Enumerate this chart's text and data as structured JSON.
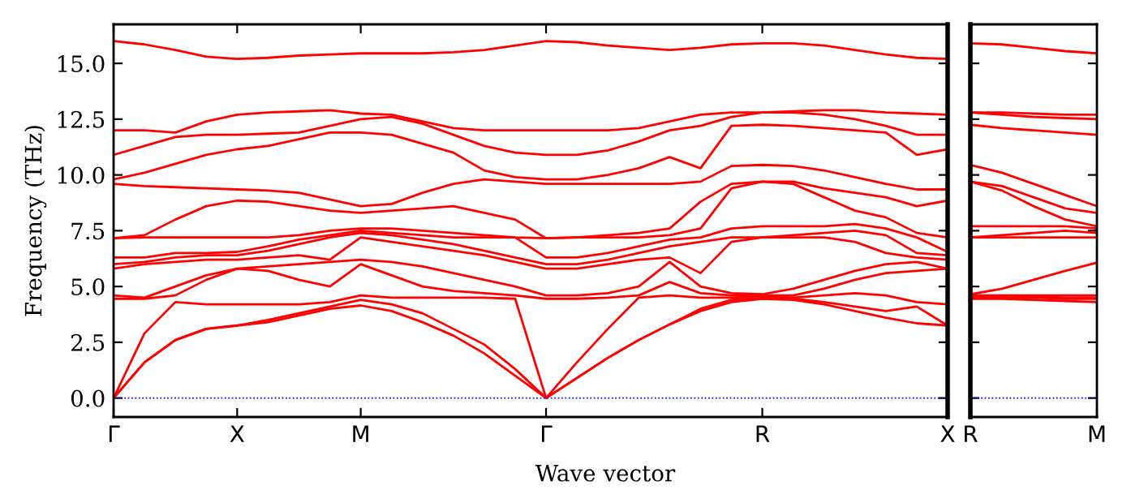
{
  "chart_data": [
    {
      "type": "line",
      "xlabel": "Wave vector",
      "ylabel": "Frequency (THz)",
      "line_style": "solid",
      "categories": [
        "Γ",
        null,
        null,
        null,
        "X",
        null,
        null,
        null,
        "M",
        null,
        null,
        null,
        null,
        null,
        "Γ",
        null,
        null,
        null,
        null,
        null,
        null,
        "R",
        null,
        null,
        null,
        null,
        null,
        "X"
      ],
      "ylim": [
        -0.85,
        16.75
      ],
      "yticks": [
        {
          "value": 0,
          "label": "0.0"
        },
        {
          "value": 2.5,
          "label": "2.5"
        },
        {
          "value": 5,
          "label": "5.0"
        },
        {
          "value": 7.5,
          "label": "7.5"
        },
        {
          "value": 10,
          "label": "10.0"
        },
        {
          "value": 12.5,
          "label": "12.5"
        },
        {
          "value": 15,
          "label": "15.0"
        }
      ],
      "ref_lines": [
        {
          "axis": "y",
          "value": 0,
          "color": "#0000ff",
          "line_style": "dotted"
        }
      ],
      "series": [
        {
          "color": "#ff0000",
          "values": [
            0,
            1.6,
            2.6,
            3.1,
            3.25,
            3.4,
            3.7,
            4.0,
            4.15,
            3.9,
            3.4,
            2.8,
            2.0,
            1.0,
            0,
            0.9,
            1.8,
            2.6,
            3.3,
            3.9,
            4.3,
            4.45,
            4.4,
            4.2,
            3.9,
            3.6,
            3.35,
            3.25
          ]
        },
        {
          "color": "#ff0000",
          "values": [
            0,
            1.6,
            2.6,
            3.1,
            3.25,
            3.5,
            3.8,
            4.1,
            4.4,
            4.2,
            3.8,
            3.1,
            2.4,
            1.3,
            0,
            0.9,
            1.8,
            2.6,
            3.3,
            4.0,
            4.4,
            4.5,
            4.45,
            4.3,
            4.1,
            3.9,
            4.1,
            3.25
          ]
        },
        {
          "color": "#ff0000",
          "values": [
            0,
            2.9,
            4.3,
            4.2,
            4.2,
            4.2,
            4.2,
            4.3,
            4.6,
            4.5,
            4.5,
            4.5,
            4.5,
            4.45,
            0,
            1.6,
            3.1,
            4.5,
            4.6,
            4.5,
            4.5,
            4.55,
            4.5,
            4.6,
            4.7,
            4.6,
            4.3,
            4.2
          ]
        },
        {
          "color": "#ff0000",
          "values": [
            4.45,
            4.45,
            4.6,
            5.3,
            5.8,
            5.7,
            5.3,
            5.0,
            6.0,
            5.5,
            5.0,
            4.8,
            4.7,
            4.6,
            4.45,
            4.45,
            4.5,
            4.6,
            5.2,
            4.7,
            4.6,
            4.6,
            4.6,
            4.9,
            5.3,
            5.6,
            5.7,
            5.8
          ]
        },
        {
          "color": "#ff0000",
          "values": [
            4.6,
            4.5,
            5.0,
            5.5,
            5.8,
            5.9,
            6.0,
            6.1,
            6.2,
            6.1,
            5.9,
            5.6,
            5.3,
            5.0,
            4.6,
            4.6,
            4.7,
            5.0,
            6.1,
            5.0,
            4.7,
            4.65,
            4.9,
            5.3,
            5.7,
            6.0,
            6.1,
            5.8
          ]
        },
        {
          "color": "#ff0000",
          "values": [
            5.8,
            6.0,
            6.1,
            6.2,
            6.2,
            6.3,
            6.4,
            6.2,
            7.2,
            7.0,
            6.8,
            6.6,
            6.4,
            6.1,
            5.8,
            5.8,
            6.0,
            6.2,
            6.3,
            5.6,
            7.0,
            7.2,
            7.2,
            7.2,
            7.0,
            6.5,
            6.3,
            6.2
          ]
        },
        {
          "color": "#ff0000",
          "values": [
            6.0,
            6.1,
            6.3,
            6.4,
            6.4,
            6.6,
            6.9,
            7.2,
            7.4,
            7.3,
            7.1,
            6.9,
            6.6,
            6.3,
            6.0,
            6.0,
            6.2,
            6.5,
            6.8,
            7.0,
            7.2,
            7.2,
            7.3,
            7.4,
            7.5,
            7.3,
            6.5,
            6.4
          ]
        },
        {
          "color": "#ff0000",
          "values": [
            6.3,
            6.3,
            6.5,
            6.5,
            6.55,
            6.8,
            7.1,
            7.3,
            7.5,
            7.4,
            7.3,
            7.2,
            7.2,
            7.2,
            6.3,
            6.3,
            6.5,
            6.8,
            7.1,
            7.2,
            7.6,
            7.7,
            7.7,
            7.7,
            7.8,
            7.6,
            7.2,
            6.55
          ]
        },
        {
          "color": "#ff0000",
          "values": [
            7.16,
            7.2,
            7.2,
            7.2,
            7.2,
            7.2,
            7.3,
            7.5,
            7.6,
            7.6,
            7.5,
            7.4,
            7.3,
            7.2,
            7.16,
            7.2,
            7.2,
            7.2,
            7.3,
            7.6,
            9.4,
            9.7,
            9.6,
            9.0,
            8.4,
            8.1,
            7.4,
            7.2
          ]
        },
        {
          "color": "#ff0000",
          "values": [
            7.16,
            7.3,
            8.0,
            8.6,
            8.85,
            8.8,
            8.6,
            8.4,
            8.3,
            8.4,
            8.5,
            8.6,
            8.3,
            8.0,
            7.16,
            7.2,
            7.3,
            7.4,
            7.6,
            8.8,
            9.6,
            9.7,
            9.7,
            9.4,
            9.2,
            9.0,
            8.6,
            8.85
          ]
        },
        {
          "color": "#ff0000",
          "values": [
            9.6,
            9.5,
            9.45,
            9.4,
            9.35,
            9.3,
            9.2,
            8.9,
            8.6,
            8.7,
            9.2,
            9.6,
            9.8,
            9.7,
            9.6,
            9.6,
            9.6,
            9.6,
            9.6,
            9.7,
            10.4,
            10.45,
            10.4,
            10.2,
            9.9,
            9.6,
            9.35,
            9.35
          ]
        },
        {
          "color": "#ff0000",
          "values": [
            9.8,
            10.1,
            10.5,
            10.9,
            11.15,
            11.3,
            11.6,
            11.9,
            11.9,
            11.8,
            11.4,
            11.0,
            10.2,
            9.9,
            9.8,
            9.8,
            10.0,
            10.3,
            10.8,
            10.3,
            12.2,
            12.25,
            12.2,
            12.1,
            12.0,
            11.9,
            10.9,
            11.15
          ]
        },
        {
          "color": "#ff0000",
          "values": [
            10.9,
            11.3,
            11.7,
            11.8,
            11.8,
            11.85,
            11.9,
            12.2,
            12.5,
            12.6,
            12.3,
            11.8,
            11.3,
            11.0,
            10.9,
            10.9,
            11.1,
            11.5,
            12.0,
            12.2,
            12.6,
            12.8,
            12.8,
            12.7,
            12.5,
            12.2,
            11.8,
            11.8
          ]
        },
        {
          "color": "#ff0000",
          "values": [
            12.0,
            12.0,
            11.9,
            12.4,
            12.7,
            12.8,
            12.85,
            12.9,
            12.75,
            12.7,
            12.4,
            12.1,
            12.0,
            12.0,
            12.0,
            12.0,
            12.0,
            12.1,
            12.4,
            12.7,
            12.8,
            12.8,
            12.85,
            12.9,
            12.9,
            12.8,
            12.75,
            12.7
          ]
        },
        {
          "color": "#ff0000",
          "values": [
            16.0,
            15.85,
            15.6,
            15.3,
            15.2,
            15.25,
            15.35,
            15.4,
            15.45,
            15.45,
            15.45,
            15.5,
            15.6,
            15.8,
            16.0,
            15.95,
            15.8,
            15.7,
            15.6,
            15.7,
            15.85,
            15.9,
            15.9,
            15.8,
            15.6,
            15.4,
            15.25,
            15.2
          ]
        }
      ]
    },
    {
      "type": "line",
      "line_style": "solid",
      "tick_labels": "x",
      "categories": [
        "R",
        null,
        null,
        null,
        "M"
      ],
      "ylim": [
        -0.85,
        16.75
      ],
      "yticks": [
        0,
        2.5,
        5,
        7.5,
        10,
        12.5,
        15
      ],
      "ref_lines": [
        {
          "axis": "y",
          "value": 0,
          "color": "#0000ff",
          "line_style": "dotted"
        }
      ],
      "series": [
        {
          "color": "#ff0000",
          "values": [
            4.45,
            4.45,
            4.4,
            4.35,
            4.3
          ]
        },
        {
          "color": "#ff0000",
          "values": [
            4.5,
            4.5,
            4.5,
            4.45,
            4.45
          ]
        },
        {
          "color": "#ff0000",
          "values": [
            4.55,
            4.55,
            4.55,
            4.5,
            4.5
          ]
        },
        {
          "color": "#ff0000",
          "values": [
            4.6,
            4.6,
            4.6,
            4.6,
            4.6
          ]
        },
        {
          "color": "#ff0000",
          "values": [
            4.65,
            4.9,
            5.3,
            5.7,
            6.07
          ]
        },
        {
          "color": "#ff0000",
          "values": [
            7.2,
            7.2,
            7.2,
            7.2,
            7.2
          ]
        },
        {
          "color": "#ff0000",
          "values": [
            7.2,
            7.3,
            7.4,
            7.5,
            7.4
          ]
        },
        {
          "color": "#ff0000",
          "values": [
            7.7,
            7.7,
            7.7,
            7.7,
            7.6
          ]
        },
        {
          "color": "#ff0000",
          "values": [
            9.7,
            9.3,
            8.6,
            8.0,
            7.7
          ]
        },
        {
          "color": "#ff0000",
          "values": [
            9.7,
            9.5,
            9.0,
            8.5,
            8.3
          ]
        },
        {
          "color": "#ff0000",
          "values": [
            10.45,
            10.1,
            9.6,
            9.1,
            8.6
          ]
        },
        {
          "color": "#ff0000",
          "values": [
            12.25,
            12.1,
            12.0,
            11.9,
            11.8
          ]
        },
        {
          "color": "#ff0000",
          "values": [
            12.8,
            12.7,
            12.6,
            12.55,
            12.5
          ]
        },
        {
          "color": "#ff0000",
          "values": [
            12.8,
            12.8,
            12.75,
            12.7,
            12.7
          ]
        },
        {
          "color": "#ff0000",
          "values": [
            15.9,
            15.85,
            15.7,
            15.55,
            15.45
          ]
        }
      ]
    }
  ]
}
